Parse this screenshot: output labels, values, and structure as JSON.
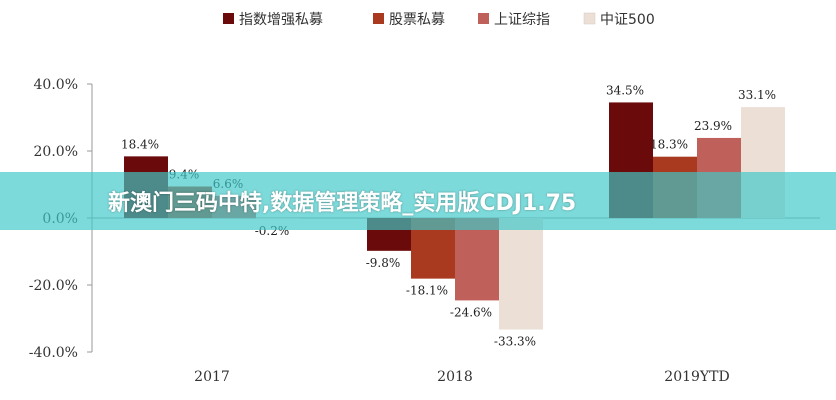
{
  "chart_data": {
    "type": "bar",
    "categories": [
      "2017",
      "2018",
      "2019YTD"
    ],
    "series": [
      {
        "name": "指数增强私募",
        "values": [
          18.4,
          -9.8,
          34.5
        ],
        "labels": [
          "18.4%",
          "-9.8%",
          "34.5%"
        ],
        "color": "#6b0a0a"
      },
      {
        "name": "股票私募",
        "values": [
          9.4,
          -18.1,
          18.3
        ],
        "labels": [
          "9.4%",
          "-18.1%",
          "18.3%"
        ],
        "color": "#a93a1f"
      },
      {
        "name": "上证综指",
        "values": [
          6.6,
          -24.6,
          23.9
        ],
        "labels": [
          "6.6%",
          "-24.6%",
          "23.9%"
        ],
        "color": "#c0605a"
      },
      {
        "name": "中证500",
        "values": [
          -0.2,
          -33.3,
          33.1
        ],
        "labels": [
          "-0.2%",
          "-33.3%",
          "33.1%"
        ],
        "color": "#ecdfd6"
      }
    ],
    "yticks": [
      "40.0%",
      "20.0%",
      "0.0%",
      "-20.0%",
      "-40.0%"
    ],
    "ylim": [
      -40,
      40
    ],
    "legend_position": "top",
    "grid": false
  },
  "overlay": {
    "banner_text": "新澳门三码中特,数据管理策略_实用版CDJ1.75",
    "banner_color": "#40c8c8"
  }
}
